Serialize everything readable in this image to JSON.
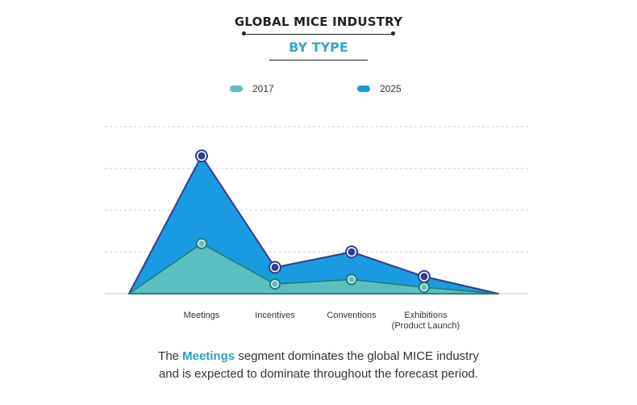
{
  "header": {
    "title": "GLOBAL MICE INDUSTRY",
    "subtitle": "BY TYPE"
  },
  "colors": {
    "s2017": "#5bbfc2",
    "s2025": "#1a9ae0",
    "line_2025": "#2f3e8f",
    "line_2017": "#1f7c74"
  },
  "chart_data": {
    "type": "area",
    "categories": [
      "Meetings",
      "Incentives",
      "Conventions",
      "Exhibitions (Product Launch)"
    ],
    "category_lines": [
      [
        "Meetings"
      ],
      [
        "Incentives"
      ],
      [
        "Conventions"
      ],
      [
        "Exhibitions",
        "(Product Launch)"
      ]
    ],
    "series": [
      {
        "name": "2017",
        "values": [
          1.2,
          0.23,
          0.34,
          0.15
        ]
      },
      {
        "name": "2025",
        "values": [
          3.3,
          0.63,
          1.0,
          0.41
        ]
      }
    ],
    "ylim": [
      0,
      4
    ],
    "grid": true,
    "legend": "top-center"
  },
  "caption": {
    "pre": "The ",
    "highlight": "Meetings",
    "line1_rest": " segment dominates the global MICE industry",
    "line2": "and is expected to dominate throughout the forecast period."
  }
}
